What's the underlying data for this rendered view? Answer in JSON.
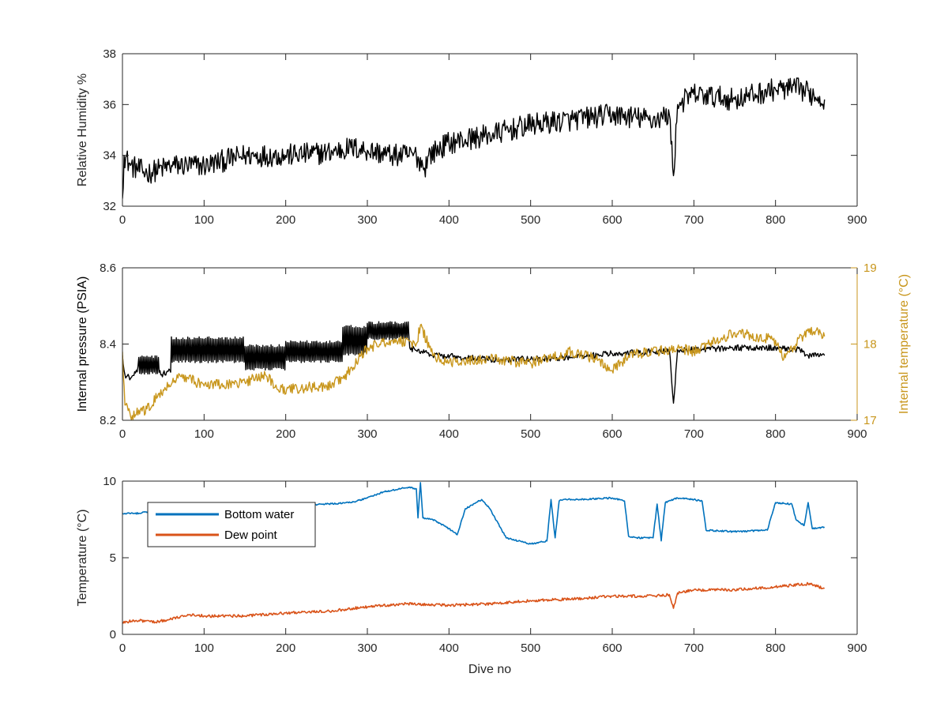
{
  "chart_data": [
    {
      "type": "line",
      "ylabel": "Relative Humidity %",
      "xlim": [
        0,
        900
      ],
      "ylim": [
        32,
        38
      ],
      "xticks": [
        0,
        100,
        200,
        300,
        400,
        500,
        600,
        700,
        800,
        900
      ],
      "yticks": [
        32,
        34,
        36,
        38
      ],
      "grid": false,
      "series": [
        {
          "color": "#000000",
          "noise": 0.45,
          "points": [
            [
              0,
              32.3
            ],
            [
              2,
              34.0
            ],
            [
              10,
              33.6
            ],
            [
              30,
              33.3
            ],
            [
              60,
              33.6
            ],
            [
              100,
              33.6
            ],
            [
              150,
              34.0
            ],
            [
              200,
              34.0
            ],
            [
              250,
              34.1
            ],
            [
              280,
              34.3
            ],
            [
              300,
              34.2
            ],
            [
              330,
              34.0
            ],
            [
              360,
              34.0
            ],
            [
              370,
              33.5
            ],
            [
              375,
              34.0
            ],
            [
              400,
              34.5
            ],
            [
              450,
              34.8
            ],
            [
              500,
              35.2
            ],
            [
              550,
              35.4
            ],
            [
              600,
              35.6
            ],
            [
              650,
              35.4
            ],
            [
              670,
              35.6
            ],
            [
              675,
              33.2
            ],
            [
              680,
              36.0
            ],
            [
              700,
              36.4
            ],
            [
              750,
              36.2
            ],
            [
              800,
              36.6
            ],
            [
              830,
              36.6
            ],
            [
              860,
              36.2
            ]
          ]
        }
      ]
    },
    {
      "type": "line",
      "ylabel": "Internal pressure (PSIA)",
      "ylabel_right": "Internal temperature (°C)",
      "xlim": [
        0,
        900
      ],
      "ylim": [
        8.2,
        8.6
      ],
      "ylim_right": [
        17,
        19
      ],
      "xticks": [
        0,
        100,
        200,
        300,
        400,
        500,
        600,
        700,
        800,
        900
      ],
      "yticks": [
        "8.2",
        "8.4",
        "8.6"
      ],
      "yticks_right": [
        17,
        18,
        19
      ],
      "grid": false,
      "series": [
        {
          "axis": "left",
          "color": "#000000",
          "noise": 0.008,
          "osc_ranges": [
            [
              20,
              45,
              8.325,
              8.365
            ],
            [
              60,
              150,
              8.355,
              8.415
            ],
            [
              150,
              200,
              8.335,
              8.395
            ],
            [
              200,
              270,
              8.355,
              8.405
            ],
            [
              270,
              300,
              8.375,
              8.445
            ],
            [
              300,
              350,
              8.415,
              8.455
            ]
          ],
          "points": [
            [
              0,
              8.37
            ],
            [
              3,
              8.32
            ],
            [
              10,
              8.31
            ],
            [
              20,
              8.34
            ],
            [
              45,
              8.34
            ],
            [
              48,
              8.32
            ],
            [
              60,
              8.33
            ],
            [
              62,
              8.385
            ],
            [
              100,
              8.385
            ],
            [
              150,
              8.37
            ],
            [
              200,
              8.36
            ],
            [
              250,
              8.38
            ],
            [
              280,
              8.41
            ],
            [
              300,
              8.43
            ],
            [
              350,
              8.44
            ],
            [
              352,
              8.39
            ],
            [
              380,
              8.37
            ],
            [
              420,
              8.365
            ],
            [
              450,
              8.36
            ],
            [
              500,
              8.36
            ],
            [
              550,
              8.365
            ],
            [
              600,
              8.375
            ],
            [
              650,
              8.38
            ],
            [
              670,
              8.385
            ],
            [
              675,
              8.245
            ],
            [
              680,
              8.385
            ],
            [
              700,
              8.385
            ],
            [
              750,
              8.39
            ],
            [
              800,
              8.39
            ],
            [
              830,
              8.385
            ],
            [
              840,
              8.37
            ],
            [
              860,
              8.37
            ]
          ]
        },
        {
          "axis": "right",
          "color": "#c8961c",
          "noise": 0.07,
          "points": [
            [
              0,
              17.9
            ],
            [
              3,
              17.2
            ],
            [
              10,
              17.05
            ],
            [
              30,
              17.15
            ],
            [
              50,
              17.4
            ],
            [
              70,
              17.6
            ],
            [
              100,
              17.45
            ],
            [
              150,
              17.5
            ],
            [
              175,
              17.6
            ],
            [
              190,
              17.4
            ],
            [
              250,
              17.45
            ],
            [
              270,
              17.55
            ],
            [
              300,
              17.95
            ],
            [
              330,
              18.05
            ],
            [
              360,
              18.0
            ],
            [
              365,
              18.25
            ],
            [
              380,
              17.85
            ],
            [
              400,
              17.75
            ],
            [
              450,
              17.8
            ],
            [
              500,
              17.75
            ],
            [
              550,
              17.9
            ],
            [
              580,
              17.8
            ],
            [
              600,
              17.65
            ],
            [
              620,
              17.85
            ],
            [
              680,
              17.95
            ],
            [
              700,
              17.9
            ],
            [
              750,
              18.15
            ],
            [
              800,
              18.05
            ],
            [
              810,
              17.8
            ],
            [
              840,
              18.2
            ],
            [
              860,
              18.1
            ]
          ]
        }
      ]
    },
    {
      "type": "line",
      "xlabel": "Dive no",
      "ylabel": "Temperature (°C)",
      "xlim": [
        0,
        900
      ],
      "ylim": [
        0,
        10
      ],
      "xticks": [
        0,
        100,
        200,
        300,
        400,
        500,
        600,
        700,
        800,
        900
      ],
      "yticks": [
        0,
        5,
        10
      ],
      "grid": false,
      "legend_position": "top-left",
      "series": [
        {
          "name": "Bottom water",
          "color": "#0072bd",
          "noise": 0.05,
          "points": [
            [
              0,
              7.9
            ],
            [
              20,
              7.9
            ],
            [
              40,
              8.1
            ],
            [
              60,
              8.5
            ],
            [
              100,
              8.5
            ],
            [
              150,
              8.5
            ],
            [
              200,
              8.4
            ],
            [
              250,
              8.5
            ],
            [
              280,
              8.6
            ],
            [
              300,
              8.9
            ],
            [
              320,
              9.3
            ],
            [
              350,
              9.6
            ],
            [
              360,
              9.5
            ],
            [
              362,
              7.6
            ],
            [
              365,
              9.9
            ],
            [
              368,
              7.6
            ],
            [
              380,
              7.5
            ],
            [
              400,
              6.9
            ],
            [
              410,
              6.5
            ],
            [
              420,
              8.2
            ],
            [
              440,
              8.8
            ],
            [
              450,
              8.2
            ],
            [
              470,
              6.3
            ],
            [
              500,
              5.9
            ],
            [
              520,
              6.1
            ],
            [
              525,
              8.8
            ],
            [
              530,
              6.3
            ],
            [
              535,
              8.7
            ],
            [
              540,
              8.8
            ],
            [
              560,
              8.8
            ],
            [
              600,
              8.9
            ],
            [
              615,
              8.7
            ],
            [
              620,
              6.4
            ],
            [
              630,
              6.3
            ],
            [
              650,
              6.3
            ],
            [
              655,
              8.5
            ],
            [
              660,
              6.1
            ],
            [
              665,
              8.6
            ],
            [
              680,
              8.9
            ],
            [
              700,
              8.8
            ],
            [
              710,
              8.7
            ],
            [
              715,
              6.8
            ],
            [
              750,
              6.7
            ],
            [
              790,
              6.8
            ],
            [
              800,
              8.6
            ],
            [
              820,
              8.5
            ],
            [
              825,
              7.5
            ],
            [
              835,
              7.1
            ],
            [
              840,
              8.6
            ],
            [
              845,
              6.9
            ],
            [
              860,
              7.0
            ]
          ]
        },
        {
          "name": "Dew point",
          "color": "#d95319",
          "noise": 0.09,
          "points": [
            [
              0,
              0.8
            ],
            [
              20,
              0.9
            ],
            [
              40,
              0.8
            ],
            [
              60,
              1.0
            ],
            [
              80,
              1.3
            ],
            [
              100,
              1.2
            ],
            [
              150,
              1.2
            ],
            [
              200,
              1.4
            ],
            [
              250,
              1.5
            ],
            [
              300,
              1.8
            ],
            [
              350,
              2.0
            ],
            [
              400,
              1.9
            ],
            [
              450,
              2.0
            ],
            [
              500,
              2.2
            ],
            [
              550,
              2.3
            ],
            [
              600,
              2.5
            ],
            [
              650,
              2.5
            ],
            [
              670,
              2.6
            ],
            [
              675,
              1.7
            ],
            [
              680,
              2.7
            ],
            [
              700,
              2.9
            ],
            [
              750,
              2.9
            ],
            [
              800,
              3.1
            ],
            [
              840,
              3.3
            ],
            [
              860,
              3.0
            ]
          ]
        }
      ]
    }
  ]
}
